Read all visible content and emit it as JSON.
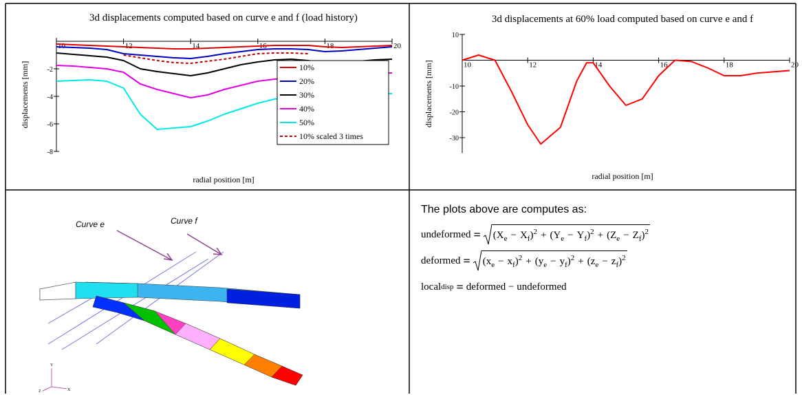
{
  "chart_data": [
    {
      "type": "line",
      "title": "3d displacements computed based on curve e and f (load history)",
      "x_label": "radial position [m]",
      "y_label": "displacements [mm]",
      "x": [
        10,
        10.5,
        11,
        11.5,
        12,
        12.5,
        13,
        13.5,
        14,
        14.5,
        15,
        15.5,
        16,
        16.5,
        17,
        17.5,
        18,
        18.5,
        19,
        19.5,
        20
      ],
      "series": [
        {
          "name": "10%",
          "color": "#e00000",
          "values": [
            -0.2,
            -0.25,
            -0.3,
            -0.35,
            -0.4,
            -0.45,
            -0.5,
            -0.55,
            -0.55,
            -0.5,
            -0.45,
            -0.4,
            -0.35,
            -0.3,
            -0.3,
            -0.3,
            -0.4,
            -0.45,
            -0.4,
            -0.35,
            -0.3
          ]
        },
        {
          "name": "20%",
          "color": "#0000c0",
          "values": [
            -0.4,
            -0.45,
            -0.5,
            -0.6,
            -0.9,
            -1.0,
            -1.1,
            -1.2,
            -1.25,
            -1.1,
            -0.9,
            -0.75,
            -0.6,
            -0.55,
            -0.55,
            -0.6,
            -0.75,
            -0.7,
            -0.6,
            -0.5,
            -0.4
          ]
        },
        {
          "name": "30%",
          "color": "#000000",
          "values": [
            -0.85,
            -0.95,
            -1.05,
            -1.15,
            -1.4,
            -2.0,
            -2.2,
            -2.35,
            -2.5,
            -2.3,
            -2.0,
            -1.7,
            -1.5,
            -1.35,
            -1.3,
            -1.4,
            -1.6,
            -1.55,
            -1.45,
            -1.35,
            -1.3
          ]
        },
        {
          "name": "40%",
          "color": "#e000e0",
          "values": [
            -1.75,
            -1.8,
            -1.9,
            -2.0,
            -2.25,
            -3.1,
            -3.5,
            -3.8,
            -4.1,
            -3.9,
            -3.5,
            -3.2,
            -2.9,
            -2.75,
            -2.65,
            -2.6,
            -2.6,
            -2.5,
            -2.4,
            -2.35,
            -2.3
          ]
        },
        {
          "name": "50%",
          "color": "#00e8e8",
          "values": [
            -2.9,
            -2.85,
            -2.8,
            -2.9,
            -3.4,
            -5.3,
            -6.4,
            -6.3,
            -6.2,
            -5.8,
            -5.3,
            -4.9,
            -4.5,
            -4.2,
            -4.0,
            -4.0,
            -4.0,
            -3.95,
            -3.9,
            -3.85,
            -3.8
          ]
        },
        {
          "name": "10% scaled 3 times",
          "color": "#c00000",
          "dashed": true,
          "values": [
            null,
            null,
            null,
            null,
            -1.0,
            -1.2,
            -1.4,
            -1.55,
            -1.6,
            -1.45,
            -1.3,
            -1.1,
            -0.9,
            -0.85,
            -0.85,
            -0.9,
            null,
            null,
            null,
            null,
            null
          ]
        }
      ],
      "xlim": [
        10,
        20
      ],
      "ylim": [
        -8,
        0.25
      ],
      "xticks": [
        10,
        12,
        14,
        16,
        18,
        20
      ],
      "yticks": [
        -8,
        -6,
        -4,
        -2
      ],
      "legend": "upper right"
    },
    {
      "type": "line",
      "title": "3d displacements at 60% load computed based on curve e and f",
      "x_label": "radial position [m]",
      "y_label": "displacements [mm]",
      "x": [
        10,
        10.5,
        11,
        11.5,
        12,
        12.4,
        13,
        13.5,
        13.8,
        14,
        14.5,
        15,
        15.5,
        16,
        16.5,
        17,
        17.5,
        18,
        18.5,
        19,
        19.5,
        20
      ],
      "series": [
        {
          "color": "#ff0000",
          "values": [
            0,
            2,
            0,
            -12,
            -25,
            -32.5,
            -26,
            -8,
            -1,
            -1,
            -10,
            -17.5,
            -15,
            -6,
            0,
            -0.5,
            -3,
            -6,
            -6,
            -5,
            -4.5,
            -4
          ]
        }
      ],
      "xlim": [
        10,
        20
      ],
      "ylim": [
        -36,
        10
      ],
      "xticks": [
        10,
        12,
        14,
        16,
        18,
        20
      ],
      "yticks": [
        10,
        -10,
        -20,
        -30
      ]
    }
  ],
  "model_view": {
    "labels": [
      "Curve e",
      "Curve f"
    ],
    "axes": [
      "Y",
      "Z",
      "X"
    ]
  },
  "notes": {
    "intro": "The plots above are computes as:",
    "formulas": [
      {
        "lhs": "undeformed",
        "eq": "=",
        "open": "(",
        "close": ")",
        "minus": "−",
        "plus": "+",
        "power": "2",
        "terms": [
          [
            "X",
            "e",
            "X",
            "f"
          ],
          [
            "Y",
            "e",
            "Y",
            "f"
          ],
          [
            "Z",
            "e",
            "Z",
            "f"
          ]
        ]
      },
      {
        "lhs": "deformed",
        "eq": "=",
        "open": "(",
        "close": ")",
        "minus": "−",
        "plus": "+",
        "power": "2",
        "terms": [
          [
            "x",
            "e",
            "x",
            "f"
          ],
          [
            "y",
            "e",
            "y",
            "f"
          ],
          [
            "z",
            "e",
            "z",
            "f"
          ]
        ]
      }
    ],
    "local": {
      "lhs": "local",
      "sub": "disp",
      "eq": "=",
      "rhs": "deformed − undeformed"
    }
  }
}
